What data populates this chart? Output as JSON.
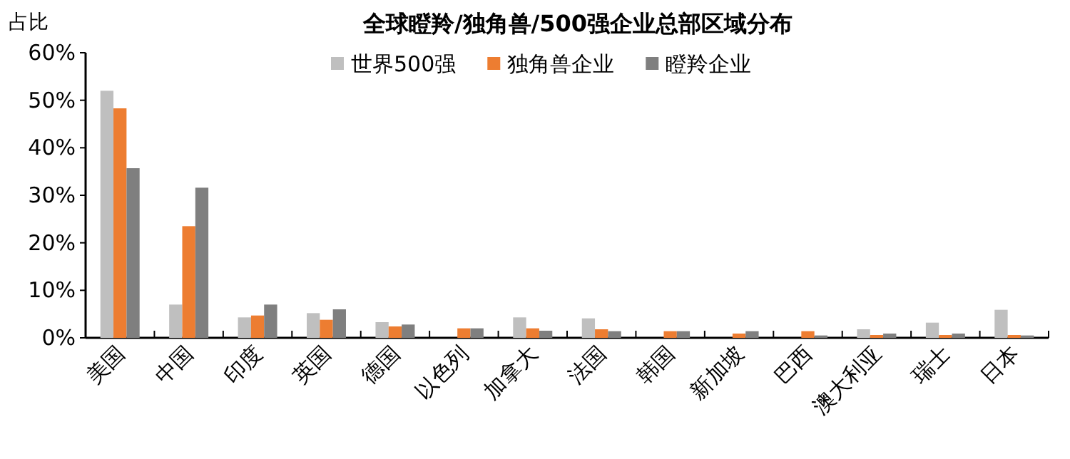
{
  "chart_data": {
    "type": "bar",
    "title": "全球瞪羚/独角兽/500强企业总部区域分布",
    "ylabel": "占比",
    "categories": [
      "美国",
      "中国",
      "印度",
      "英国",
      "德国",
      "以色列",
      "加拿大",
      "法国",
      "韩国",
      "新加坡",
      "巴西",
      "澳大利亚",
      "瑞士",
      "日本"
    ],
    "series": [
      {
        "name": "世界500强",
        "color": "#bfbfbf",
        "values": [
          52,
          7,
          4.3,
          5.2,
          3.3,
          0,
          4.3,
          4.1,
          0,
          0,
          0,
          1.8,
          3.2,
          5.9
        ]
      },
      {
        "name": "独角兽企业",
        "color": "#ed7d31",
        "values": [
          48.3,
          23.5,
          4.7,
          3.8,
          2.4,
          2,
          2,
          1.8,
          1.4,
          0.9,
          1.4,
          0.6,
          0.6,
          0.6
        ]
      },
      {
        "name": "瞪羚企业",
        "color": "#7f7f7f",
        "values": [
          35.7,
          31.6,
          7,
          6,
          2.8,
          2,
          1.5,
          1.4,
          1.4,
          1.4,
          0.5,
          0.9,
          0.9,
          0.5
        ]
      }
    ],
    "ylim": [
      0,
      60
    ],
    "yticks": [
      {
        "value": 0,
        "label": "0%"
      },
      {
        "value": 10,
        "label": "10%"
      },
      {
        "value": 20,
        "label": "20%"
      },
      {
        "value": 30,
        "label": "30%"
      },
      {
        "value": 40,
        "label": "40%"
      },
      {
        "value": 50,
        "label": "50%"
      },
      {
        "value": 60,
        "label": "60%"
      }
    ],
    "legend": "top",
    "grid": false
  }
}
